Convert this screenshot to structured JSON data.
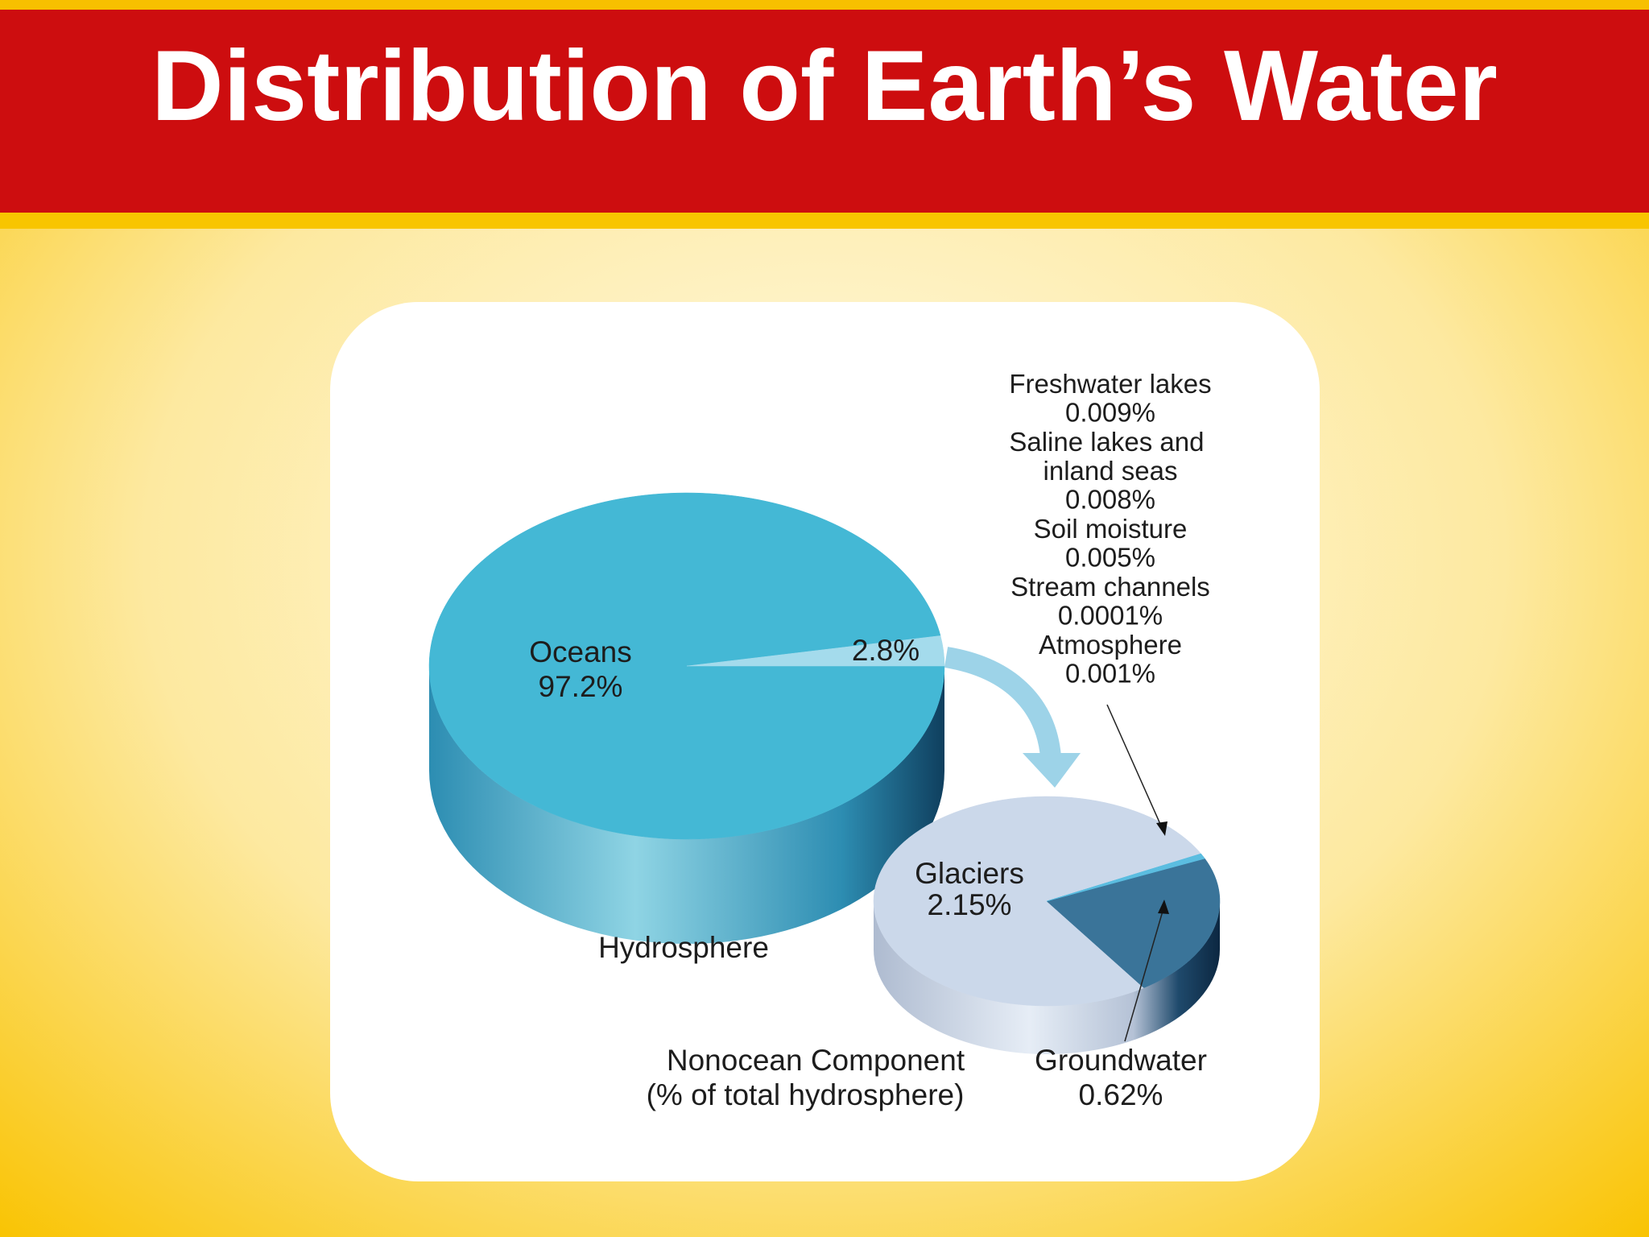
{
  "title": "Distribution of Earth’s Water",
  "chart_data": [
    {
      "type": "pie",
      "title": "Hydrosphere",
      "categories": [
        "Oceans",
        null
      ],
      "values": [
        97.2,
        2.8
      ],
      "value_labels": [
        "97.2%",
        "2.8%"
      ],
      "colors": [
        "#44b8d5",
        "#a4dbec"
      ]
    },
    {
      "type": "pie",
      "title": "Nonocean Component",
      "subtitle": "(% of total hydrosphere)",
      "categories": [
        "Glaciers",
        "Groundwater",
        "Freshwater lakes",
        "Saline lakes and inland seas",
        "Soil moisture",
        "Stream channels",
        "Atmosphere"
      ],
      "values": [
        2.15,
        0.62,
        0.009,
        0.008,
        0.005,
        0.0001,
        0.001
      ],
      "value_labels": [
        "2.15%",
        "0.62%",
        "0.009%",
        "0.008%",
        "0.005%",
        "0.0001%",
        "0.001%"
      ],
      "colors": [
        "#cbd8ea",
        "#3a7499",
        "#5bbde0",
        "#5bbde0",
        "#5bbde0",
        "#5bbde0",
        "#5bbde0"
      ]
    }
  ]
}
